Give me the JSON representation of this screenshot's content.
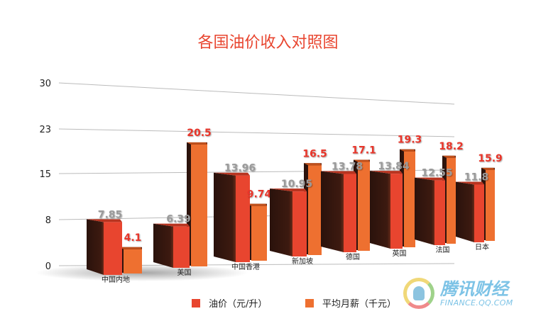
{
  "chart_data": {
    "type": "bar",
    "title": "各国油价收入对照图",
    "categories": [
      "中国内地",
      "美国",
      "中国香港",
      "新加坡",
      "德国",
      "英国",
      "法国",
      "日本"
    ],
    "series": [
      {
        "name": "油价（元/升）",
        "color": "#e8452f",
        "values": [
          7.85,
          6.39,
          13.96,
          10.95,
          13.78,
          13.84,
          12.55,
          11.8
        ],
        "labels": [
          "7.85",
          "6.39",
          "13.96",
          "10.95",
          "13.78",
          "13.84",
          "12.55",
          "11.8"
        ]
      },
      {
        "name": "平均月薪（千元）",
        "color": "#ee7030",
        "values": [
          4.1,
          20.5,
          9.74,
          16.5,
          17.1,
          19.3,
          18.2,
          15.9
        ],
        "labels": [
          "4.1",
          "20.5",
          "9.74",
          "16.5",
          "17.1",
          "19.3",
          "18.2",
          "15.9"
        ]
      }
    ],
    "yticks": [
      "0",
      "8",
      "15",
      "23",
      "30"
    ],
    "ytick_values": [
      0,
      7.5,
      15,
      22.5,
      30
    ],
    "ylim": [
      0,
      30
    ],
    "grid": true,
    "legend": "bottom"
  },
  "logo": {
    "name": "腾讯财经",
    "url_text": "FINANCE.QQ.COM"
  }
}
